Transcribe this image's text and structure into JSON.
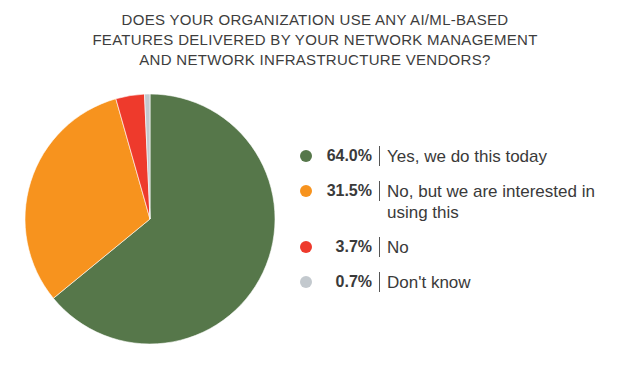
{
  "chart_data": {
    "type": "pie",
    "title": "DOES YOUR ORGANIZATION USE ANY AI/ML-BASED FEATURES DELIVERED BY YOUR NETWORK MANAGEMENT AND NETWORK INFRASTRUCTURE VENDORS?",
    "categories": [
      "Yes, we do this today",
      "No, but we are interested in using this",
      "No",
      "Don't know"
    ],
    "values": [
      64.0,
      31.5,
      3.7,
      0.7
    ],
    "value_labels": [
      "64.0%",
      "31.5%",
      "3.7%",
      "0.7%"
    ],
    "colors": [
      "#56774a",
      "#f7931e",
      "#ee3a2c",
      "#c3c9ce"
    ],
    "legend": "right"
  }
}
